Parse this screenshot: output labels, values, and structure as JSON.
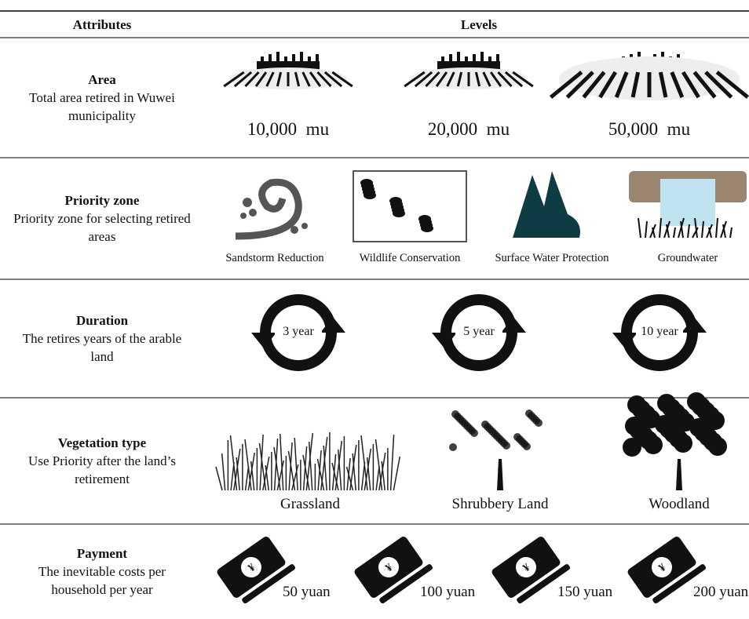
{
  "header": {
    "attributes": "Attributes",
    "levels": "Levels"
  },
  "rows": [
    {
      "name": "Area",
      "description": "Total area retired in Wuwei municipality",
      "levels": [
        "10,000  mu",
        "20,000  mu",
        "50,000  mu"
      ]
    },
    {
      "name": "Priority zone",
      "description": "Priority zone for selecting retired areas",
      "levels": [
        "Sandstorm Reduction",
        "Wildlife Conservation",
        "Surface Water Protection",
        "Groundwater"
      ]
    },
    {
      "name": "Duration",
      "description": "The retires years of the arable land",
      "levels": [
        "3 year",
        "5 year",
        "10 year"
      ]
    },
    {
      "name": "Vegetation type",
      "description": "Use Priority after the land’s retirement",
      "levels": [
        "Grassland",
        "Shrubbery Land",
        "Woodland"
      ]
    },
    {
      "name": "Payment",
      "description": "The inevitable costs per household per year",
      "levels": [
        "50 yuan",
        "100 yuan",
        "150 yuan",
        "200 yuan"
      ]
    }
  ]
}
